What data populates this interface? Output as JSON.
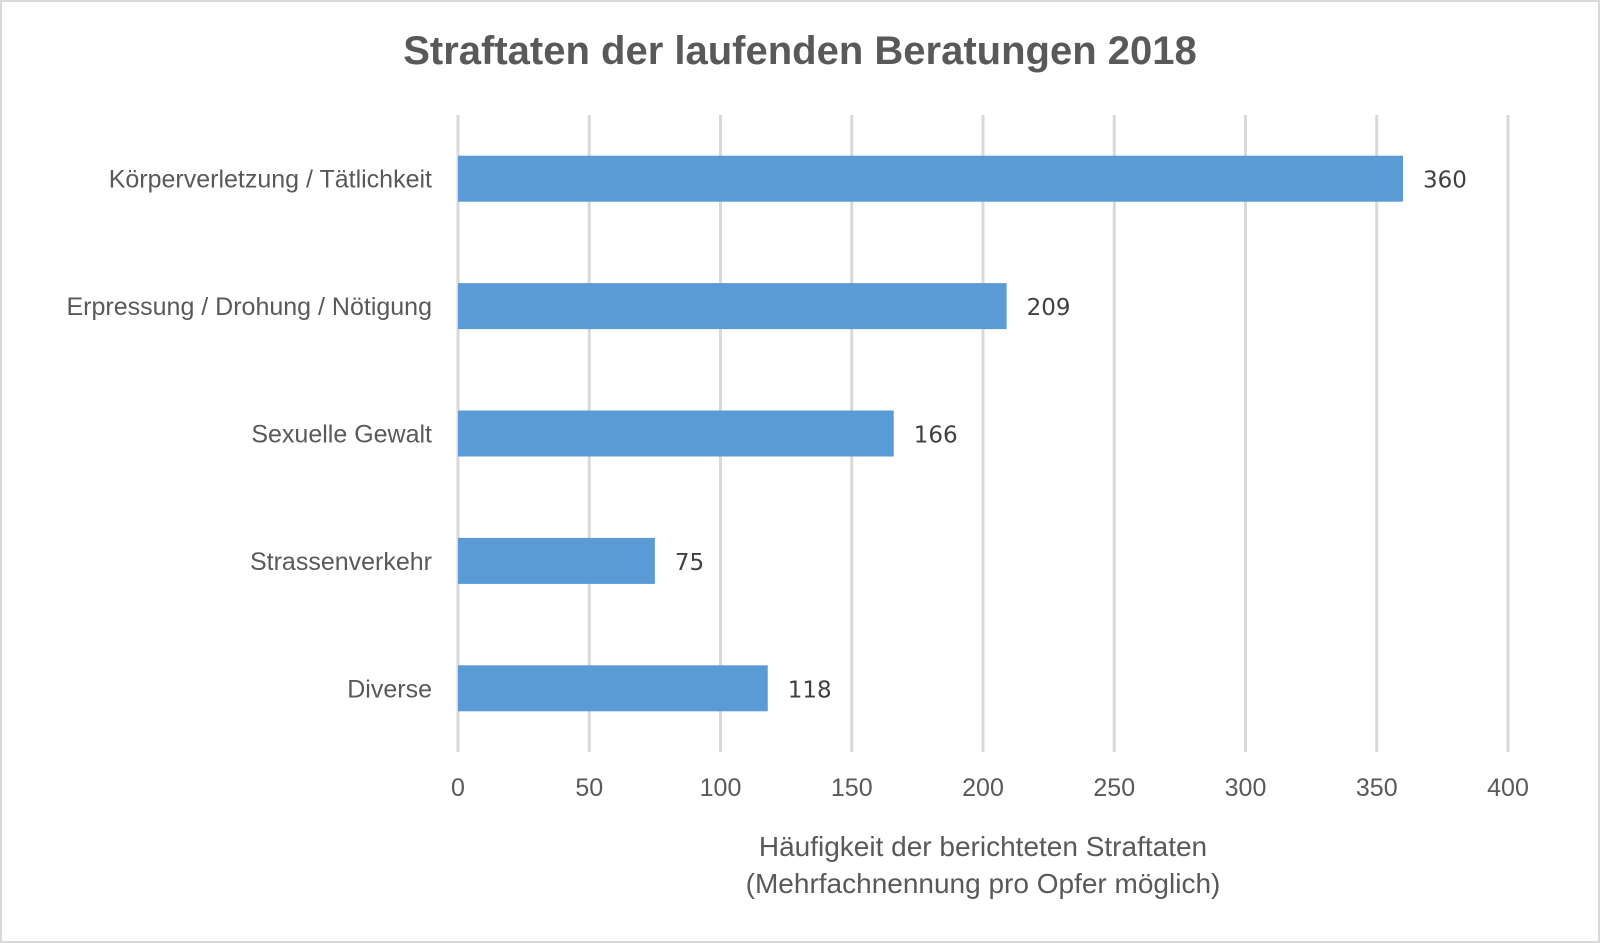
{
  "chart_data": {
    "type": "bar",
    "orientation": "horizontal",
    "title": "Straftaten der laufenden Beratungen 2018",
    "categories": [
      "Körperverletzung / Tätlichkeit",
      "Erpressung / Drohung / Nötigung",
      "Sexuelle Gewalt",
      "Strassenverkehr",
      "Diverse"
    ],
    "values": [
      360,
      209,
      166,
      75,
      118
    ],
    "data_labels": [
      "360",
      "209",
      "166",
      "75",
      "118"
    ],
    "xlabel_lines": [
      "Häufigkeit der berichteten Straftaten",
      "(Mehrfachnennung pro Opfer möglich)"
    ],
    "ylabel": "",
    "xlim": [
      0,
      400
    ],
    "xticks": [
      0,
      50,
      100,
      150,
      200,
      250,
      300,
      350,
      400
    ],
    "xtick_labels": [
      "0",
      "50",
      "100",
      "150",
      "200",
      "250",
      "300",
      "350",
      "400"
    ],
    "grid": true,
    "legend": "none",
    "bar_color": "#5b9bd5"
  }
}
